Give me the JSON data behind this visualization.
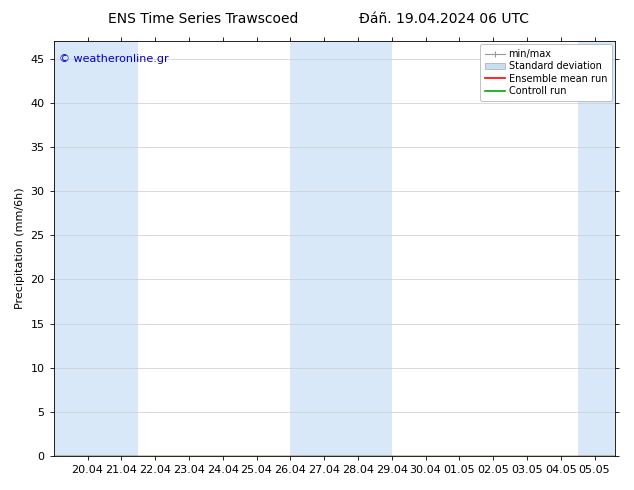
{
  "title_left": "ENS Time Series Trawscoed",
  "title_right": "Đáñ. 19.04.2024 06 UTC",
  "ylabel": "Precipitation (mm/6h)",
  "watermark": "© weatheronline.gr",
  "watermark_color": "#0000cc",
  "background_color": "#ffffff",
  "plot_bg_color": "#ffffff",
  "ylim": [
    0,
    47
  ],
  "yticks": [
    0,
    5,
    10,
    15,
    20,
    25,
    30,
    35,
    40,
    45
  ],
  "xtick_labels": [
    "20.04",
    "21.04",
    "22.04",
    "23.04",
    "24.04",
    "25.04",
    "26.04",
    "27.04",
    "28.04",
    "29.04",
    "30.04",
    "01.05",
    "02.05",
    "03.05",
    "04.05",
    "05.05"
  ],
  "xtick_positions": [
    1,
    2,
    3,
    4,
    5,
    6,
    7,
    8,
    9,
    10,
    11,
    12,
    13,
    14,
    15,
    16
  ],
  "x_min": 0.0,
  "x_max": 16.6,
  "shaded_bands": [
    {
      "start": 0.0,
      "end": 2.5,
      "color": "#d8e8f8"
    },
    {
      "start": 7.0,
      "end": 10.0,
      "color": "#d8e8f8"
    },
    {
      "start": 15.5,
      "end": 16.6,
      "color": "#d8e8f8"
    }
  ],
  "legend_entries": [
    {
      "label": "min/max",
      "color": "#999999"
    },
    {
      "label": "Standard deviation",
      "color": "#c8ddf0"
    },
    {
      "label": "Ensemble mean run",
      "color": "#ff0000"
    },
    {
      "label": "Controll run",
      "color": "#00aa00"
    }
  ],
  "title_fontsize": 10,
  "ylabel_fontsize": 8,
  "tick_fontsize": 8,
  "legend_fontsize": 7,
  "watermark_fontsize": 8
}
